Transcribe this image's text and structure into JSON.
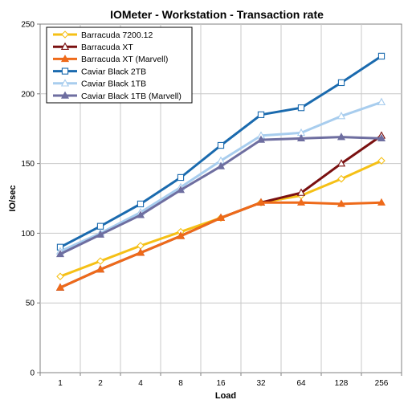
{
  "chart_data": {
    "type": "line",
    "title": "IOMeter - Workstation - Transaction rate",
    "xlabel": "Load",
    "ylabel": "IO/sec",
    "categories": [
      "1",
      "2",
      "4",
      "8",
      "16",
      "32",
      "64",
      "128",
      "256"
    ],
    "ylim": [
      0,
      250
    ],
    "y_ticks": [
      0,
      50,
      100,
      150,
      200,
      250
    ],
    "grid": "horizontal and vertical",
    "legend_position": "top-left",
    "series": [
      {
        "name": "Barracuda 7200.12",
        "color": "#f5c016",
        "marker": "diamond",
        "values": [
          69,
          80,
          91,
          101,
          111,
          122,
          127,
          139,
          152
        ]
      },
      {
        "name": "Barracuda XT",
        "color": "#7a1010",
        "marker": "triangle-open",
        "values": [
          61,
          74,
          86,
          98,
          111,
          122,
          129,
          150,
          170
        ]
      },
      {
        "name": "Barracuda XT (Marvell)",
        "color": "#ee6a1a",
        "marker": "triangle",
        "values": [
          61,
          74,
          86,
          98,
          111,
          122,
          122,
          121,
          122
        ]
      },
      {
        "name": "Caviar Black 2TB",
        "color": "#1a6aae",
        "marker": "square-open",
        "values": [
          90,
          105,
          121,
          140,
          163,
          185,
          190,
          208,
          227
        ]
      },
      {
        "name": "Caviar Black 1TB",
        "color": "#a8cdee",
        "marker": "triangle-open",
        "values": [
          87,
          100,
          115,
          133,
          152,
          170,
          172,
          184,
          194
        ]
      },
      {
        "name": "Caviar Black 1TB (Marvell)",
        "color": "#6e6ea0",
        "marker": "triangle",
        "values": [
          85,
          99,
          113,
          131,
          148,
          167,
          168,
          169,
          168
        ]
      }
    ]
  }
}
